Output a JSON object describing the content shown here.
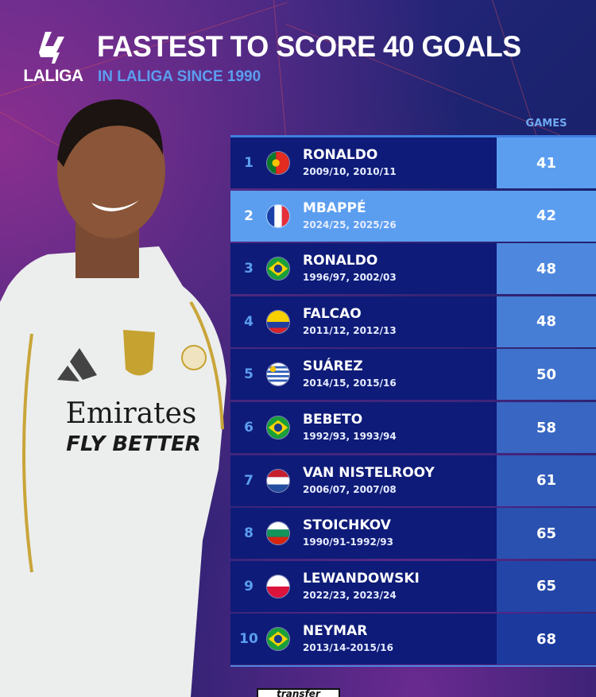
{
  "header": {
    "logo_text": "LALIGA",
    "title": "FASTEST TO SCORE 40 GOALS",
    "subtitle": "IN LALIGA SINCE 1990",
    "games_header": "GAMES"
  },
  "colors": {
    "row_dark": "#0e1b78",
    "highlight": "#5b9ef0",
    "rank": "#5b9ef0",
    "games_light": "#5b9ef0",
    "games_dark": "#1c3a9e"
  },
  "photo": {
    "shirt_sponsor": "Emirates",
    "shirt_slogan": "FLY BETTER"
  },
  "watermark": "transfer",
  "chart_data": {
    "type": "table",
    "title": "FASTEST TO SCORE 40 GOALS",
    "subtitle": "IN LALIGA SINCE 1990",
    "columns": [
      "Rank",
      "Player",
      "Seasons",
      "GAMES"
    ],
    "rows": [
      {
        "rank": "1",
        "name": "RONALDO",
        "seasons": "2009/10, 2010/11",
        "games": "41",
        "flag": "portugal",
        "highlight": false
      },
      {
        "rank": "2",
        "name": "MBAPPÉ",
        "seasons": "2024/25, 2025/26",
        "games": "42",
        "flag": "france",
        "highlight": true
      },
      {
        "rank": "3",
        "name": "RONALDO",
        "seasons": "1996/97, 2002/03",
        "games": "48",
        "flag": "brazil",
        "highlight": false
      },
      {
        "rank": "4",
        "name": "FALCAO",
        "seasons": "2011/12, 2012/13",
        "games": "48",
        "flag": "colombia",
        "highlight": false
      },
      {
        "rank": "5",
        "name": "SUÁREZ",
        "seasons": "2014/15, 2015/16",
        "games": "50",
        "flag": "uruguay",
        "highlight": false
      },
      {
        "rank": "6",
        "name": "BEBETO",
        "seasons": "1992/93, 1993/94",
        "games": "58",
        "flag": "brazil",
        "highlight": false
      },
      {
        "rank": "7",
        "name": "VAN NISTELROOY",
        "seasons": "2006/07, 2007/08",
        "games": "61",
        "flag": "netherlands",
        "highlight": false
      },
      {
        "rank": "8",
        "name": "STOICHKOV",
        "seasons": "1990/91-1992/93",
        "games": "65",
        "flag": "bulgaria",
        "highlight": false
      },
      {
        "rank": "9",
        "name": "LEWANDOWSKI",
        "seasons": "2022/23, 2023/24",
        "games": "65",
        "flag": "poland",
        "highlight": false
      },
      {
        "rank": "10",
        "name": "NEYMAR",
        "seasons": "2013/14-2015/16",
        "games": "68",
        "flag": "brazil",
        "highlight": false
      }
    ]
  }
}
